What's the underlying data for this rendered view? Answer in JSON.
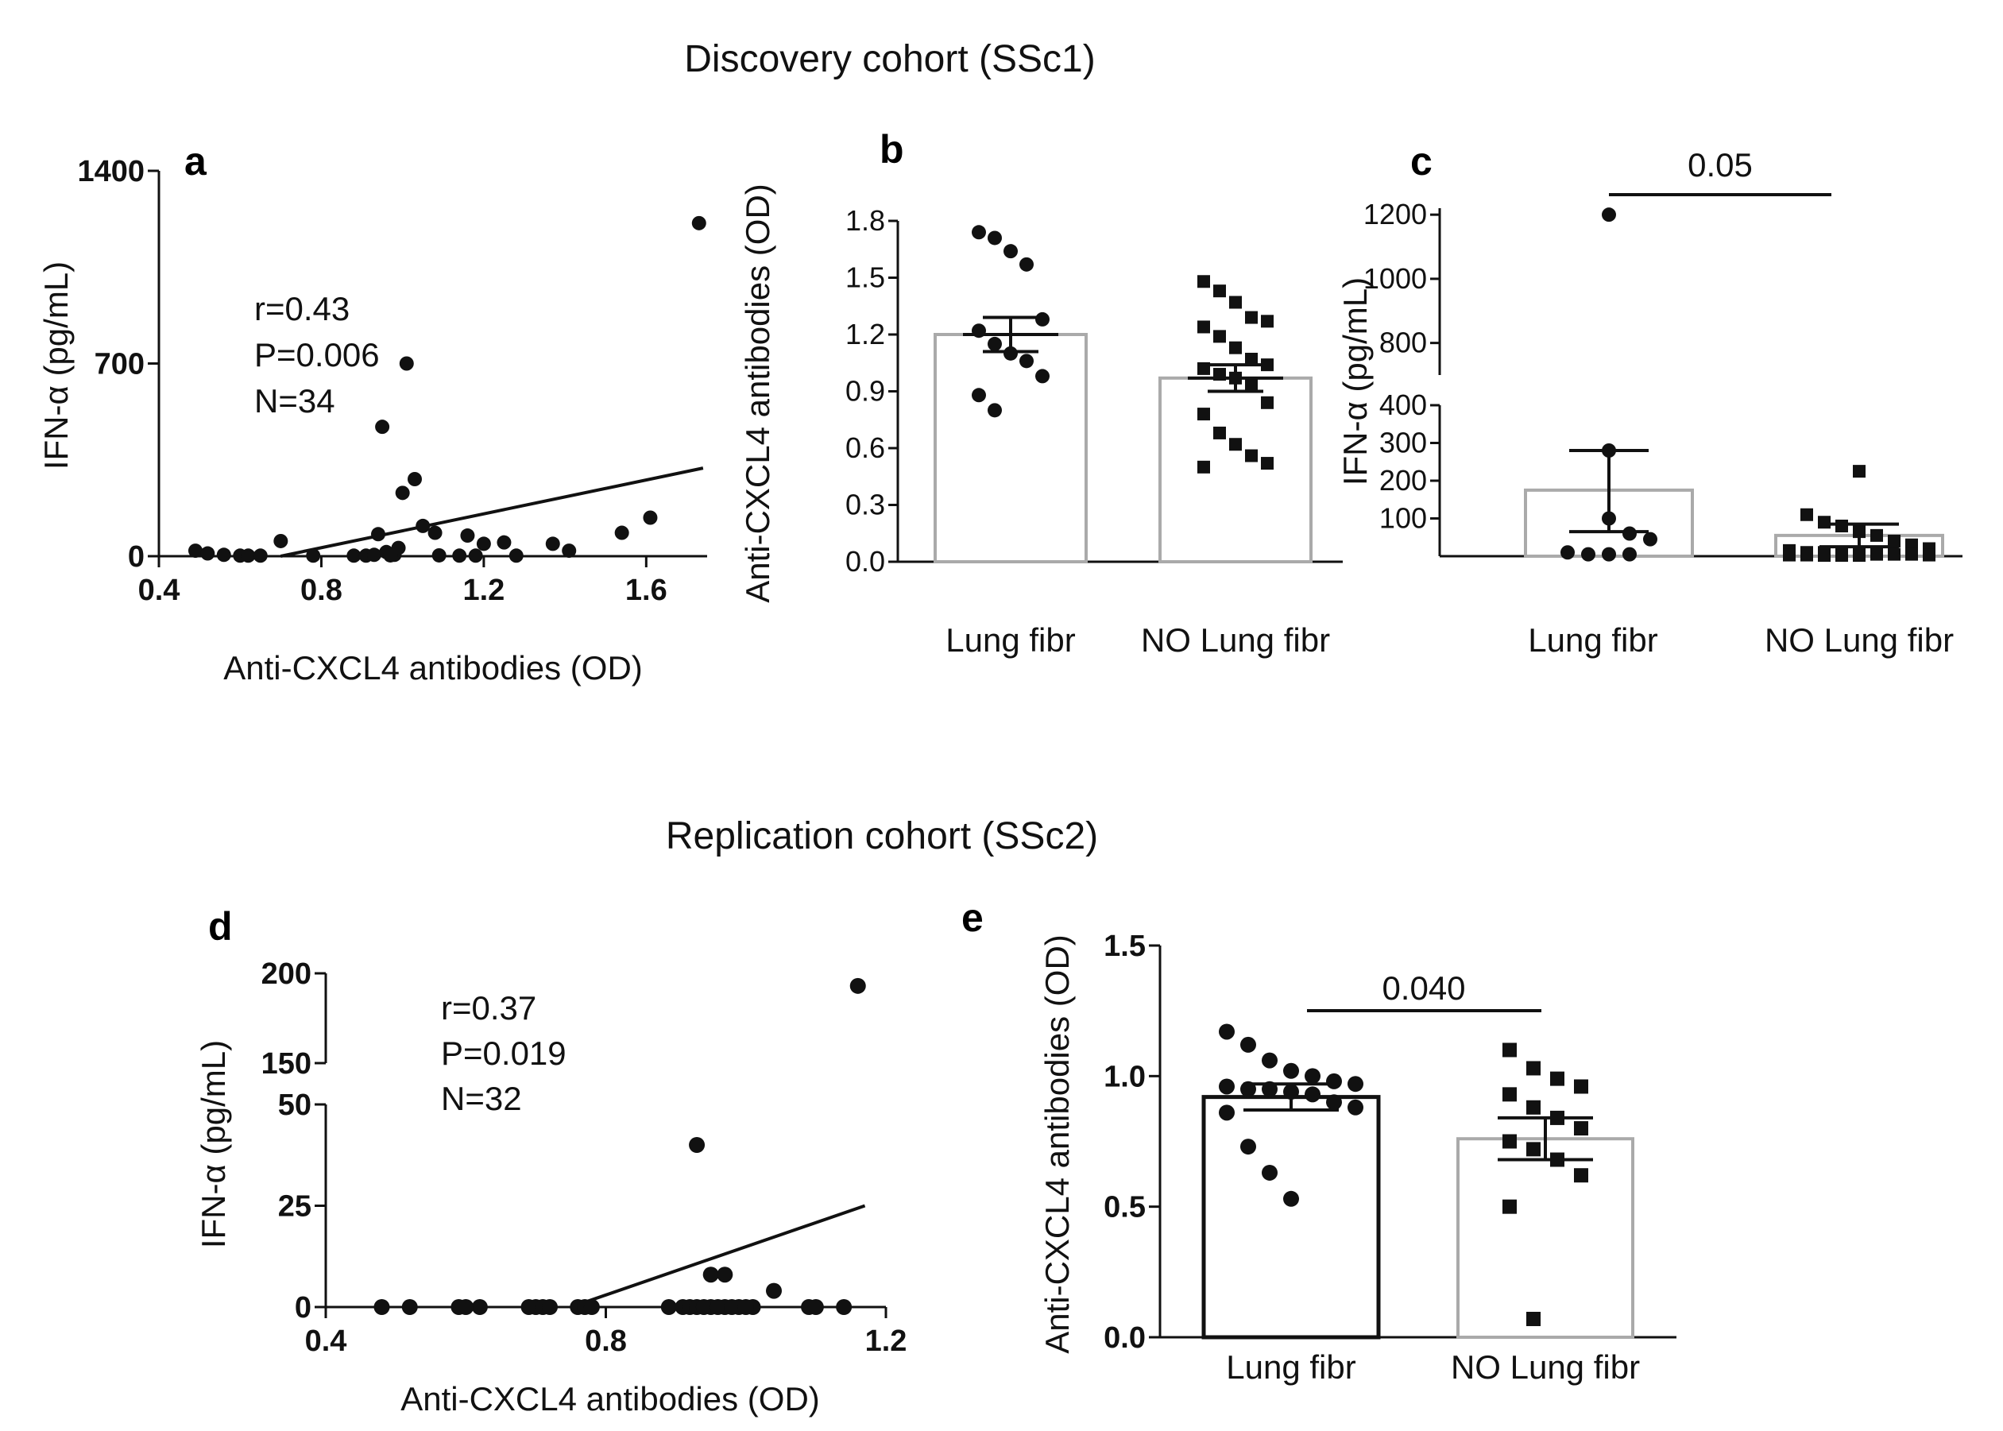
{
  "titles": {
    "discovery": "Discovery cohort (SSc1)",
    "replication": "Replication  cohort (SSc2)"
  },
  "chart_data": [
    {
      "panel": "a",
      "type": "scatter",
      "xlabel": "Anti-CXCL4 antibodies (OD)",
      "ylabel": "IFN-α (pg/mL)",
      "xlim": [
        0.4,
        1.75
      ],
      "ylim": [
        0,
        1400
      ],
      "xticks": [
        "0.4",
        "0.8",
        "1.2",
        "1.6"
      ],
      "yticks": [
        "0",
        "700",
        "1400"
      ],
      "stats": [
        "r=0.43",
        "P=0.006",
        "N=34"
      ],
      "regression": {
        "x0": 0.7,
        "y0": 0,
        "x1": 1.74,
        "y1": 320
      },
      "points": [
        [
          0.49,
          20
        ],
        [
          0.52,
          10
        ],
        [
          0.56,
          5
        ],
        [
          0.6,
          2
        ],
        [
          0.62,
          2
        ],
        [
          0.65,
          2
        ],
        [
          0.7,
          55
        ],
        [
          0.78,
          2
        ],
        [
          0.88,
          2
        ],
        [
          0.91,
          2
        ],
        [
          0.93,
          5
        ],
        [
          0.94,
          80
        ],
        [
          0.95,
          470
        ],
        [
          0.96,
          15
        ],
        [
          0.98,
          5
        ],
        [
          0.99,
          30
        ],
        [
          1.0,
          230
        ],
        [
          1.01,
          700
        ],
        [
          1.03,
          280
        ],
        [
          1.05,
          110
        ],
        [
          1.08,
          85
        ],
        [
          1.14,
          2
        ],
        [
          1.16,
          75
        ],
        [
          1.18,
          2
        ],
        [
          1.2,
          45
        ],
        [
          1.25,
          50
        ],
        [
          1.28,
          2
        ],
        [
          1.37,
          45
        ],
        [
          1.41,
          20
        ],
        [
          1.54,
          85
        ],
        [
          1.61,
          140
        ],
        [
          1.73,
          1210
        ],
        [
          0.97,
          3
        ],
        [
          1.09,
          3
        ]
      ]
    },
    {
      "panel": "b",
      "type": "bar",
      "ylabel": "Anti-CXCL4 antibodies (OD)",
      "categories": [
        "Lung fibr",
        "NO Lung fibr"
      ],
      "yticks": [
        "0.0",
        "0.3",
        "0.6",
        "0.9",
        "1.2",
        "1.5",
        "1.8"
      ],
      "ylim": [
        0,
        1.8
      ],
      "means": [
        1.2,
        0.97
      ],
      "sem": [
        [
          1.11,
          1.29
        ],
        [
          0.9,
          1.04
        ]
      ],
      "points": [
        [
          1.74,
          1.71,
          1.64,
          1.57,
          1.28,
          1.22,
          1.15,
          1.1,
          1.06,
          0.98,
          0.88,
          0.8
        ],
        [
          1.48,
          1.43,
          1.37,
          1.29,
          1.27,
          1.24,
          1.19,
          1.13,
          1.07,
          1.04,
          1.02,
          0.99,
          0.97,
          0.93,
          0.84,
          0.78,
          0.68,
          0.62,
          0.56,
          0.52,
          0.5
        ]
      ]
    },
    {
      "panel": "c",
      "type": "bar",
      "ylabel": "IFN-α (pg/mL)",
      "categories": [
        "Lung fibr",
        "NO Lung fibr"
      ],
      "yticks_lower": [
        "100",
        "200",
        "300",
        "400"
      ],
      "yticks_upper": [
        "800",
        "1000",
        "1200"
      ],
      "broken_axis": {
        "lower": [
          0,
          400
        ],
        "upper": [
          700,
          1250
        ]
      },
      "means": [
        175,
        55
      ],
      "sem": [
        [
          65,
          280
        ],
        [
          25,
          85
        ]
      ],
      "p_value": "0.05",
      "points": [
        [
          1200,
          280,
          100,
          60,
          45,
          10,
          5,
          5,
          5
        ],
        [
          225,
          110,
          90,
          80,
          65,
          55,
          40,
          30,
          20,
          15,
          10,
          10,
          8,
          5,
          5,
          5,
          5,
          3,
          3,
          3,
          2,
          2,
          2
        ]
      ]
    },
    {
      "panel": "d",
      "type": "scatter",
      "xlabel": "Anti-CXCL4 antibodies (OD)",
      "ylabel": "IFN-α (pg/mL)",
      "xlim": [
        0.4,
        1.2
      ],
      "xticks": [
        "0.4",
        "0.8",
        "1.2"
      ],
      "yticks_lower": [
        "0",
        "25",
        "50"
      ],
      "yticks_upper": [
        "150",
        "200"
      ],
      "broken_axis": {
        "lower": [
          0,
          50
        ],
        "upper": [
          150,
          200
        ]
      },
      "stats": [
        "r=0.37",
        "P=0.019",
        "N=32"
      ],
      "regression": {
        "x0": 0.75,
        "y0": 0,
        "x1": 1.17,
        "y1": 25
      },
      "points": [
        [
          0.48,
          0
        ],
        [
          0.52,
          0
        ],
        [
          0.59,
          0
        ],
        [
          0.62,
          0
        ],
        [
          0.69,
          0
        ],
        [
          0.7,
          0
        ],
        [
          0.71,
          0
        ],
        [
          0.76,
          0
        ],
        [
          0.77,
          0
        ],
        [
          0.78,
          0
        ],
        [
          0.89,
          0
        ],
        [
          0.91,
          0
        ],
        [
          0.92,
          0
        ],
        [
          0.93,
          0
        ],
        [
          0.95,
          0
        ],
        [
          0.97,
          0
        ],
        [
          0.99,
          0
        ],
        [
          1.01,
          0
        ],
        [
          0.93,
          40
        ],
        [
          0.95,
          8
        ],
        [
          0.97,
          8
        ],
        [
          1.04,
          4
        ],
        [
          1.09,
          0
        ],
        [
          1.1,
          0
        ],
        [
          1.14,
          0
        ],
        [
          1.16,
          193
        ],
        [
          0.94,
          0
        ],
        [
          0.96,
          0
        ],
        [
          0.98,
          0
        ],
        [
          0.72,
          0
        ],
        [
          0.6,
          0
        ],
        [
          1.0,
          0
        ]
      ]
    },
    {
      "panel": "e",
      "type": "bar",
      "ylabel": "Anti-CXCL4 antibodies (OD)",
      "categories": [
        "Lung fibr",
        "NO Lung fibr"
      ],
      "yticks": [
        "0.0",
        "0.5",
        "1.0",
        "1.5"
      ],
      "ylim": [
        0,
        1.5
      ],
      "means": [
        0.92,
        0.76
      ],
      "sem": [
        [
          0.87,
          0.97
        ],
        [
          0.68,
          0.84
        ]
      ],
      "p_value": "0.040",
      "points": [
        [
          1.17,
          1.12,
          1.06,
          1.02,
          1.0,
          0.98,
          0.97,
          0.96,
          0.95,
          0.95,
          0.94,
          0.93,
          0.9,
          0.88,
          0.86,
          0.73,
          0.63,
          0.53
        ],
        [
          1.1,
          1.03,
          0.99,
          0.96,
          0.93,
          0.88,
          0.84,
          0.8,
          0.75,
          0.72,
          0.68,
          0.62,
          0.5,
          0.07
        ]
      ]
    }
  ]
}
